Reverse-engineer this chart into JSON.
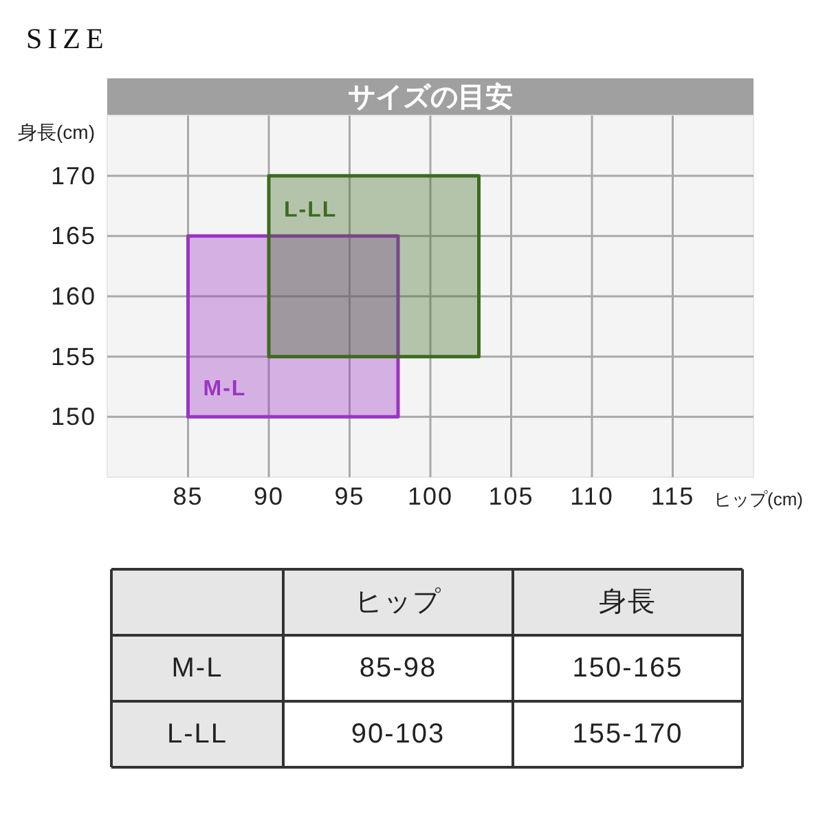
{
  "chart_data": {
    "type": "area",
    "title": "SIZE",
    "subtitle": "サイズの目安",
    "xlabel": "ヒップ(cm)",
    "ylabel": "身長(cm)",
    "xlim": [
      80,
      120
    ],
    "ylim": [
      145,
      175
    ],
    "xticks": [
      85,
      90,
      95,
      100,
      105,
      110,
      115
    ],
    "yticks": [
      150,
      155,
      160,
      165,
      170
    ],
    "grid": true,
    "series": [
      {
        "name": "M-L",
        "color": "#9a34c2",
        "x": [
          85,
          98,
          98,
          85,
          85
        ],
        "values": [
          150,
          150,
          165,
          165,
          150
        ]
      },
      {
        "name": "L-LL",
        "color": "#3d6b1f",
        "x": [
          90,
          103,
          103,
          90,
          90
        ],
        "values": [
          155,
          155,
          170,
          170,
          155
        ]
      }
    ],
    "annotations": [
      "ヒップ",
      "身長",
      "85-98",
      "150-165",
      "90-103",
      "155-170"
    ]
  }
}
